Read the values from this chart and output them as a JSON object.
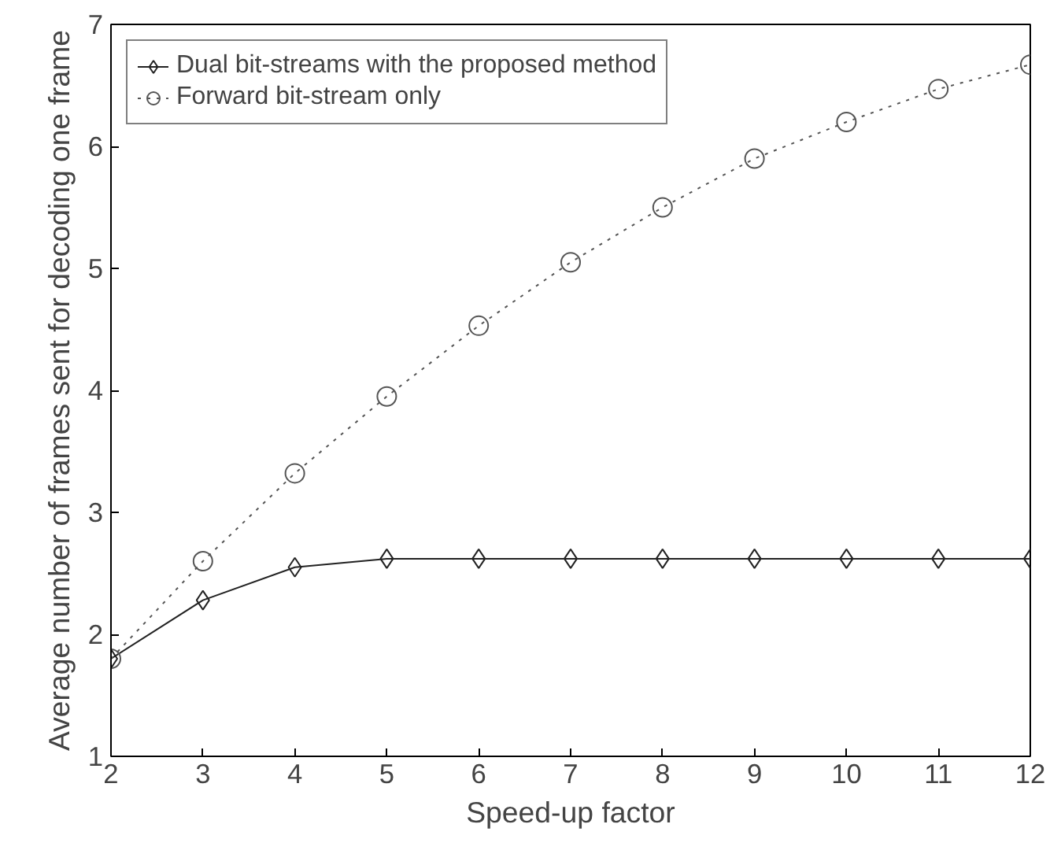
{
  "chart_data": {
    "type": "line",
    "xlabel": "Speed-up factor",
    "ylabel": "Average number of frames sent for decoding one frame",
    "x": [
      2,
      3,
      4,
      5,
      6,
      7,
      8,
      9,
      10,
      11,
      12
    ],
    "series": [
      {
        "name": "Dual bit-streams with the proposed method",
        "color": "#222222",
        "marker": "diamond",
        "line_style": "solid",
        "values": [
          1.8,
          2.28,
          2.55,
          2.62,
          2.62,
          2.62,
          2.62,
          2.62,
          2.62,
          2.62,
          2.62
        ]
      },
      {
        "name": "Forward bit-stream only",
        "color": "#555555",
        "marker": "circle",
        "line_style": "dotted",
        "values": [
          1.8,
          2.6,
          3.32,
          3.95,
          4.53,
          5.05,
          5.5,
          5.9,
          6.2,
          6.47,
          6.67
        ]
      }
    ],
    "xlim": [
      2,
      12
    ],
    "ylim": [
      1,
      7
    ],
    "xticks": [
      2,
      3,
      4,
      5,
      6,
      7,
      8,
      9,
      10,
      11,
      12
    ],
    "yticks": [
      1,
      2,
      3,
      4,
      5,
      6,
      7
    ],
    "grid": false,
    "legend": "top left"
  }
}
